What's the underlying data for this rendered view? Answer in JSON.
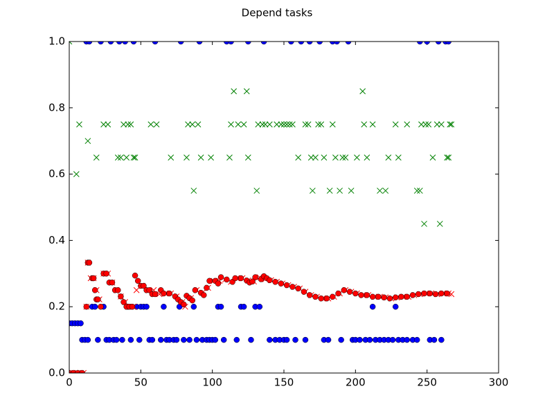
{
  "chart_data": {
    "type": "scatter",
    "title": "Depend tasks",
    "xlim": [
      0,
      300
    ],
    "xticks": [
      0,
      50,
      100,
      150,
      200,
      250,
      300
    ],
    "ylim": [
      0,
      1
    ],
    "yticks": [
      {
        "value": 0,
        "label": "0.0"
      },
      {
        "value": 0.2,
        "label": "0.2"
      },
      {
        "value": 0.4,
        "label": "0.4"
      },
      {
        "value": 0.6,
        "label": "0.6"
      },
      {
        "value": 0.8,
        "label": "0.8"
      },
      {
        "value": 1,
        "label": "1.0"
      }
    ],
    "series": [
      {
        "color": "#0000ff",
        "marker": "o",
        "x": [
          0,
          2,
          4,
          6,
          8,
          9,
          11,
          12,
          13,
          14,
          16,
          18,
          20,
          22,
          24,
          26,
          28,
          29,
          31,
          33,
          35,
          37,
          39,
          41,
          43,
          45,
          47,
          49,
          50,
          52,
          54,
          56,
          58,
          60,
          64,
          66,
          68,
          70,
          73,
          75,
          77,
          78,
          80,
          84,
          87,
          89,
          91,
          93,
          96,
          98,
          100,
          102,
          104,
          106,
          108,
          110,
          113,
          117,
          120,
          122,
          125,
          127,
          130,
          133,
          136,
          140,
          144,
          147,
          150,
          152,
          155,
          158,
          162,
          165,
          168,
          175,
          178,
          181,
          184,
          187,
          190,
          195,
          198,
          200,
          203,
          207,
          210,
          212,
          214,
          217,
          220,
          223,
          226,
          228,
          230,
          233,
          236,
          240,
          243,
          245,
          250,
          252,
          255,
          258,
          260,
          263,
          265
        ],
        "values": [
          0.15,
          0.15,
          0.15,
          0.15,
          0.15,
          0.1,
          0.1,
          1,
          0.1,
          1,
          0.2,
          0.2,
          0.1,
          1,
          0.2,
          0.1,
          0.1,
          1,
          0.1,
          0.1,
          1,
          0.1,
          1,
          0.2,
          0.1,
          1,
          0.2,
          0.1,
          0.2,
          0.2,
          0.2,
          0.1,
          0.1,
          1,
          0.1,
          0.2,
          0.1,
          0.1,
          0.1,
          0.1,
          0.2,
          1,
          0.1,
          0.1,
          0.2,
          0.1,
          1,
          0.1,
          0.1,
          0.1,
          0.1,
          0.1,
          0.2,
          0.2,
          0.1,
          1,
          1,
          0.1,
          0.2,
          0.2,
          1,
          0.1,
          0.2,
          0.2,
          1,
          0.1,
          0.1,
          0.1,
          0.1,
          0.1,
          1,
          0.1,
          1,
          0.1,
          1,
          1,
          0.1,
          0.1,
          1,
          1,
          0.1,
          1,
          0.1,
          0.1,
          0.1,
          0.1,
          0.1,
          0.2,
          0.1,
          0.1,
          0.1,
          0.1,
          0.1,
          0.2,
          0.1,
          0.1,
          0.1,
          0.1,
          0.1,
          1,
          1,
          0.1,
          0.1,
          1,
          0.1,
          1,
          1
        ]
      },
      {
        "color": "#008000",
        "marker": "x",
        "x": [
          0,
          5,
          7,
          13,
          19,
          24,
          27,
          34,
          36,
          38,
          40,
          41,
          43,
          45,
          46,
          57,
          61,
          71,
          82,
          83,
          86,
          87,
          90,
          92,
          99,
          112,
          113,
          115,
          118,
          122,
          124,
          125,
          131,
          132,
          135,
          137,
          140,
          145,
          148,
          150,
          152,
          154,
          156,
          160,
          165,
          167,
          169,
          170,
          172,
          174,
          176,
          178,
          182,
          184,
          186,
          189,
          191,
          193,
          197,
          201,
          205,
          206,
          208,
          212,
          217,
          221,
          223,
          228,
          230,
          236,
          243,
          245,
          246,
          248,
          249,
          251,
          254,
          257,
          259,
          260,
          264,
          265,
          266,
          267
        ],
        "values": [
          1,
          0.6,
          0.75,
          0.7,
          0.65,
          0.75,
          0.75,
          0.65,
          0.65,
          0.75,
          0.65,
          0.75,
          0.75,
          0.65,
          0.65,
          0.75,
          0.75,
          0.65,
          0.65,
          0.75,
          0.75,
          0.55,
          0.75,
          0.65,
          0.65,
          0.65,
          0.75,
          0.85,
          0.75,
          0.75,
          0.85,
          0.65,
          0.55,
          0.75,
          0.75,
          0.75,
          0.75,
          0.75,
          0.75,
          0.75,
          0.75,
          0.75,
          0.75,
          0.65,
          0.75,
          0.75,
          0.65,
          0.55,
          0.65,
          0.75,
          0.75,
          0.65,
          0.55,
          0.75,
          0.65,
          0.55,
          0.65,
          0.65,
          0.55,
          0.65,
          0.85,
          0.75,
          0.65,
          0.75,
          0.55,
          0.55,
          0.65,
          0.75,
          0.65,
          0.75,
          0.55,
          0.55,
          0.75,
          0.45,
          0.75,
          0.75,
          0.65,
          0.75,
          0.45,
          0.75,
          0.65,
          0.65,
          0.75,
          0.75
        ]
      },
      {
        "color": "#ff0000",
        "marker": "x",
        "x": [
          0,
          2,
          4,
          6,
          8,
          10,
          12,
          13,
          15,
          17,
          19,
          21,
          24,
          27,
          30,
          33,
          36,
          39,
          41,
          43,
          45,
          47,
          51,
          55,
          59,
          63,
          67,
          71,
          75,
          79,
          81,
          85,
          89,
          93,
          97,
          101,
          105,
          109,
          113,
          117,
          121,
          125,
          129,
          133,
          137,
          141,
          145,
          149,
          153,
          157,
          161,
          165,
          169,
          173,
          177,
          181,
          185,
          189,
          193,
          197,
          201,
          205,
          209,
          213,
          217,
          221,
          225,
          229,
          233,
          237,
          241,
          245,
          249,
          253,
          257,
          261,
          265,
          267
        ],
        "values": [
          0,
          0,
          0,
          0,
          0,
          0,
          0.2,
          0.333,
          0.286,
          0.286,
          0.25,
          0.222,
          0.3,
          0.3,
          0.273,
          0.25,
          0.231,
          0.214,
          0.2,
          0.2,
          0.2,
          0.25,
          0.263,
          0.25,
          0.25,
          0.238,
          0.24,
          0.24,
          0.231,
          0.214,
          0.2,
          0.226,
          0.25,
          0.242,
          0.257,
          0.278,
          0.278,
          0.282,
          0.275,
          0.286,
          0.286,
          0.279,
          0.276,
          0.289,
          0.283,
          0.28,
          0.275,
          0.27,
          0.265,
          0.26,
          0.255,
          0.245,
          0.235,
          0.23,
          0.225,
          0.225,
          0.23,
          0.24,
          0.25,
          0.245,
          0.24,
          0.235,
          0.235,
          0.23,
          0.23,
          0.228,
          0.225,
          0.228,
          0.23,
          0.23,
          0.235,
          0.238,
          0.24,
          0.24,
          0.238,
          0.24,
          0.24,
          0.238
        ]
      },
      {
        "color": "#ff0000",
        "marker": "o",
        "x": [
          0,
          3,
          6,
          9,
          12,
          13,
          14,
          16,
          17,
          18,
          19,
          20,
          22,
          24,
          26,
          28,
          30,
          32,
          34,
          36,
          38,
          40,
          42,
          44,
          46,
          48,
          50,
          52,
          54,
          56,
          58,
          60,
          64,
          66,
          70,
          74,
          76,
          78,
          80,
          82,
          84,
          86,
          88,
          92,
          94,
          96,
          98,
          102,
          104,
          106,
          110,
          114,
          116,
          120,
          124,
          126,
          128,
          130,
          134,
          136,
          138,
          140,
          144,
          148,
          152,
          156,
          160,
          164,
          168,
          172,
          176,
          180,
          184,
          188,
          192,
          196,
          200,
          204,
          208,
          212,
          216,
          220,
          224,
          228,
          232,
          236,
          240,
          244,
          248,
          252,
          256,
          260,
          264
        ],
        "values": [
          0,
          0,
          0,
          0,
          0.2,
          0.333,
          0.333,
          0.286,
          0.286,
          0.25,
          0.222,
          0.222,
          0.2,
          0.3,
          0.3,
          0.273,
          0.273,
          0.25,
          0.25,
          0.231,
          0.214,
          0.2,
          0.2,
          0.2,
          0.294,
          0.278,
          0.263,
          0.263,
          0.25,
          0.25,
          0.238,
          0.238,
          0.25,
          0.24,
          0.24,
          0.231,
          0.222,
          0.214,
          0.207,
          0.233,
          0.226,
          0.219,
          0.25,
          0.242,
          0.235,
          0.257,
          0.278,
          0.278,
          0.27,
          0.289,
          0.282,
          0.275,
          0.286,
          0.286,
          0.279,
          0.273,
          0.276,
          0.289,
          0.283,
          0.292,
          0.286,
          0.28,
          0.275,
          0.27,
          0.265,
          0.26,
          0.255,
          0.245,
          0.235,
          0.23,
          0.225,
          0.225,
          0.23,
          0.24,
          0.25,
          0.245,
          0.24,
          0.235,
          0.235,
          0.23,
          0.23,
          0.228,
          0.225,
          0.228,
          0.23,
          0.23,
          0.235,
          0.238,
          0.24,
          0.24,
          0.238,
          0.24,
          0.24
        ]
      }
    ]
  }
}
